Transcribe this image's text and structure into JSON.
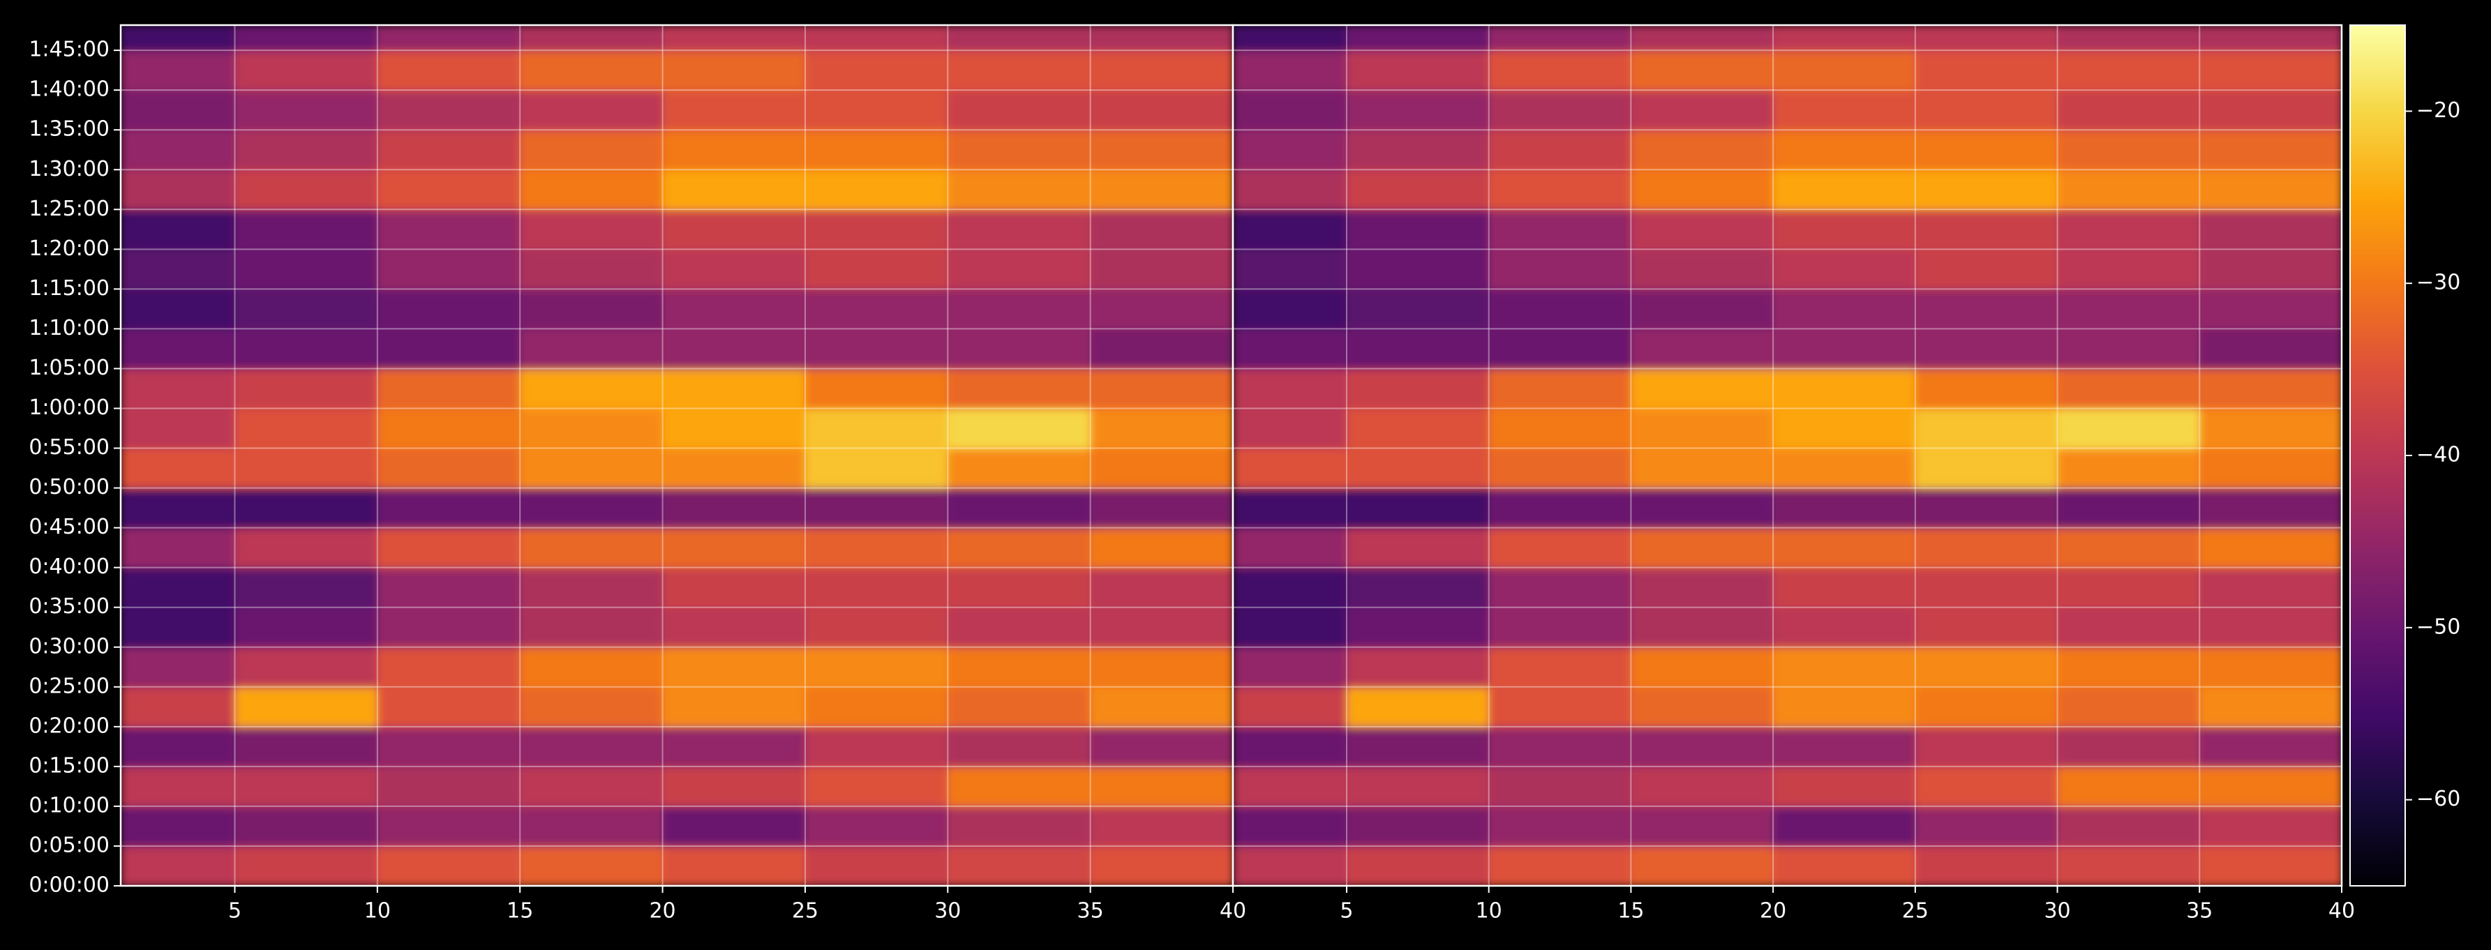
{
  "chart_data": [
    {
      "type": "heatmap",
      "xbins": [
        1,
        5,
        10,
        15,
        20,
        25,
        30,
        35,
        40
      ],
      "ybins": [
        0,
        300,
        600,
        900,
        1200,
        1500,
        1800,
        2100,
        2400,
        2700,
        3000,
        3300,
        3600,
        3900,
        4200,
        4500,
        4800,
        5100,
        5400,
        5700,
        6000,
        6300,
        6490
      ],
      "values": [
        [
          -40,
          -38,
          -35,
          -33,
          -35,
          -38,
          -37,
          -35
        ],
        [
          -50,
          -48,
          -45,
          -45,
          -50,
          -45,
          -42,
          -40
        ],
        [
          -40,
          -40,
          -42,
          -40,
          -38,
          -35,
          -30,
          -30
        ],
        [
          -50,
          -48,
          -45,
          -45,
          -45,
          -40,
          -42,
          -45
        ],
        [
          -38,
          -25,
          -35,
          -32,
          -28,
          -30,
          -32,
          -28
        ],
        [
          -45,
          -40,
          -35,
          -30,
          -28,
          -28,
          -30,
          -30
        ],
        [
          -55,
          -50,
          -45,
          -42,
          -40,
          -38,
          -40,
          -40
        ],
        [
          -55,
          -52,
          -45,
          -42,
          -38,
          -38,
          -38,
          -40
        ],
        [
          -45,
          -40,
          -35,
          -32,
          -32,
          -33,
          -32,
          -30
        ],
        [
          -55,
          -55,
          -50,
          -50,
          -48,
          -48,
          -50,
          -48
        ],
        [
          -35,
          -35,
          -32,
          -28,
          -28,
          -22,
          -28,
          -30
        ],
        [
          -40,
          -35,
          -30,
          -28,
          -25,
          -22,
          -20,
          -28
        ],
        [
          -40,
          -38,
          -32,
          -25,
          -25,
          -30,
          -32,
          -32
        ],
        [
          -50,
          -50,
          -50,
          -45,
          -45,
          -45,
          -45,
          -48
        ],
        [
          -55,
          -52,
          -50,
          -48,
          -45,
          -45,
          -45,
          -45
        ],
        [
          -52,
          -50,
          -45,
          -42,
          -40,
          -38,
          -40,
          -42
        ],
        [
          -55,
          -50,
          -45,
          -40,
          -38,
          -38,
          -40,
          -42
        ],
        [
          -42,
          -38,
          -35,
          -30,
          -25,
          -25,
          -28,
          -28
        ],
        [
          -45,
          -42,
          -38,
          -32,
          -30,
          -30,
          -32,
          -32
        ],
        [
          -48,
          -45,
          -42,
          -40,
          -35,
          -35,
          -38,
          -38
        ],
        [
          -45,
          -40,
          -35,
          -32,
          -32,
          -35,
          -35,
          -35
        ],
        [
          -55,
          -50,
          -45,
          -42,
          -40,
          -40,
          -42,
          -42
        ]
      ],
      "xlim": [
        1,
        40
      ],
      "ylim": [
        0,
        6490
      ],
      "xticks": [
        5,
        10,
        15,
        20,
        25,
        30,
        35,
        40
      ],
      "yticks": [
        {
          "value": 0,
          "label": "0:00:00"
        },
        {
          "value": 300,
          "label": "0:05:00"
        },
        {
          "value": 600,
          "label": "0:10:00"
        },
        {
          "value": 900,
          "label": "0:15:00"
        },
        {
          "value": 1200,
          "label": "0:20:00"
        },
        {
          "value": 1500,
          "label": "0:25:00"
        },
        {
          "value": 1800,
          "label": "0:30:00"
        },
        {
          "value": 2100,
          "label": "0:35:00"
        },
        {
          "value": 2400,
          "label": "0:40:00"
        },
        {
          "value": 2700,
          "label": "0:45:00"
        },
        {
          "value": 3000,
          "label": "0:50:00"
        },
        {
          "value": 3300,
          "label": "0:55:00"
        },
        {
          "value": 3600,
          "label": "1:00:00"
        },
        {
          "value": 3900,
          "label": "1:05:00"
        },
        {
          "value": 4200,
          "label": "1:10:00"
        },
        {
          "value": 4500,
          "label": "1:15:00"
        },
        {
          "value": 4800,
          "label": "1:20:00"
        },
        {
          "value": 5100,
          "label": "1:25:00"
        },
        {
          "value": 5400,
          "label": "1:30:00"
        },
        {
          "value": 5700,
          "label": "1:35:00"
        },
        {
          "value": 6000,
          "label": "1:40:00"
        },
        {
          "value": 6300,
          "label": "1:45:00"
        }
      ],
      "grid": true
    },
    {
      "type": "heatmap",
      "xbins": [
        1,
        5,
        10,
        15,
        20,
        25,
        30,
        35,
        40
      ],
      "ybins": [
        0,
        300,
        600,
        900,
        1200,
        1500,
        1800,
        2100,
        2400,
        2700,
        3000,
        3300,
        3600,
        3900,
        4200,
        4500,
        4800,
        5100,
        5400,
        5700,
        6000,
        6300,
        6490
      ],
      "values": [
        [
          -40,
          -38,
          -35,
          -33,
          -35,
          -38,
          -37,
          -35
        ],
        [
          -50,
          -48,
          -45,
          -45,
          -50,
          -45,
          -42,
          -40
        ],
        [
          -40,
          -40,
          -42,
          -40,
          -38,
          -35,
          -30,
          -30
        ],
        [
          -50,
          -48,
          -45,
          -45,
          -45,
          -40,
          -42,
          -45
        ],
        [
          -38,
          -25,
          -35,
          -32,
          -28,
          -30,
          -32,
          -28
        ],
        [
          -45,
          -40,
          -35,
          -30,
          -28,
          -28,
          -30,
          -30
        ],
        [
          -55,
          -50,
          -45,
          -42,
          -40,
          -38,
          -40,
          -40
        ],
        [
          -55,
          -52,
          -45,
          -42,
          -38,
          -38,
          -38,
          -40
        ],
        [
          -45,
          -40,
          -35,
          -32,
          -32,
          -33,
          -32,
          -30
        ],
        [
          -55,
          -55,
          -50,
          -50,
          -48,
          -48,
          -50,
          -48
        ],
        [
          -35,
          -35,
          -32,
          -28,
          -28,
          -22,
          -28,
          -30
        ],
        [
          -40,
          -35,
          -30,
          -28,
          -25,
          -22,
          -20,
          -28
        ],
        [
          -40,
          -38,
          -32,
          -25,
          -25,
          -30,
          -32,
          -32
        ],
        [
          -50,
          -50,
          -50,
          -45,
          -45,
          -45,
          -45,
          -48
        ],
        [
          -55,
          -52,
          -50,
          -48,
          -45,
          -45,
          -45,
          -45
        ],
        [
          -52,
          -50,
          -45,
          -42,
          -40,
          -38,
          -40,
          -42
        ],
        [
          -55,
          -50,
          -45,
          -40,
          -38,
          -38,
          -40,
          -42
        ],
        [
          -42,
          -38,
          -35,
          -30,
          -25,
          -25,
          -28,
          -28
        ],
        [
          -45,
          -42,
          -38,
          -32,
          -30,
          -30,
          -32,
          -32
        ],
        [
          -48,
          -45,
          -42,
          -40,
          -35,
          -35,
          -38,
          -38
        ],
        [
          -45,
          -40,
          -35,
          -32,
          -32,
          -35,
          -35,
          -35
        ],
        [
          -55,
          -50,
          -45,
          -42,
          -40,
          -40,
          -42,
          -42
        ]
      ],
      "xlim": [
        1,
        40
      ],
      "ylim": [
        0,
        6490
      ],
      "xticks": [
        5,
        10,
        15,
        20,
        25,
        30,
        35,
        40
      ],
      "yticks": [
        0,
        300,
        600,
        900,
        1200,
        1500,
        1800,
        2100,
        2400,
        2700,
        3000,
        3300,
        3600,
        3900,
        4200,
        4500,
        4800,
        5100,
        5400,
        5700,
        6000,
        6300
      ],
      "grid": true
    }
  ],
  "colorbar": {
    "colormap": "inferno",
    "clim": [
      -65,
      -15
    ],
    "ticks": [
      {
        "value": -60,
        "label": "−60"
      },
      {
        "value": -50,
        "label": "−50"
      },
      {
        "value": -40,
        "label": "−40"
      },
      {
        "value": -30,
        "label": "−30"
      },
      {
        "value": -20,
        "label": "−20"
      }
    ]
  }
}
